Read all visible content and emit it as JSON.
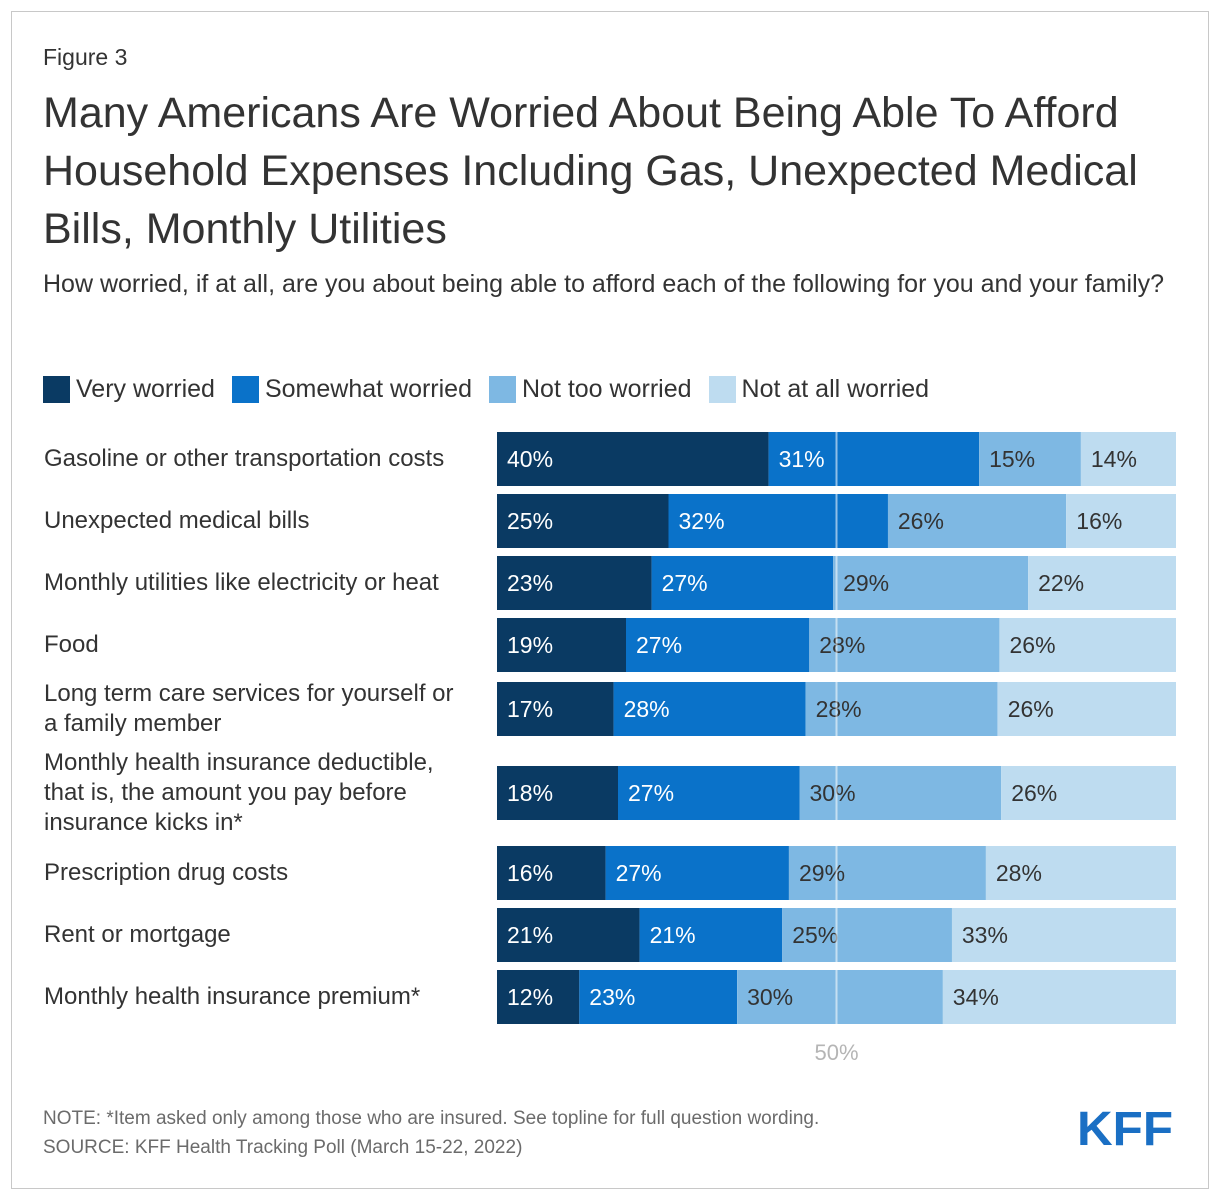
{
  "figure_label": "Figure 3",
  "title": "Many Americans Are Worried About Being Able To Afford Household Expenses Including Gas, Unexpected Medical Bills, Monthly Utilities",
  "subtitle": "How worried, if at all, are you about being able to afford each of the following for you and your family?",
  "legend": [
    {
      "label": "Very worried",
      "color": "#0a3a63"
    },
    {
      "label": "Somewhat worried",
      "color": "#0a72c9"
    },
    {
      "label": "Not too worried",
      "color": "#7eb8e3"
    },
    {
      "label": "Not at all worried",
      "color": "#bedcf0"
    }
  ],
  "note": "NOTE: *Item asked only among those who are insured. See topline for full question wording.",
  "source": "SOURCE: KFF Health Tracking Poll (March 15-22, 2022)",
  "logo_text": "KFF",
  "colors": {
    "very_worried": "#0a3a63",
    "somewhat_worried": "#0a72c9",
    "not_too_worried": "#7eb8e3",
    "not_at_all_worried": "#bedcf0",
    "logo": "#1a6fc4"
  },
  "chart_data": {
    "type": "bar",
    "orientation": "horizontal",
    "stacked": true,
    "unit": "%",
    "categories": [
      "Gasoline or other transportation costs",
      "Unexpected medical bills",
      "Monthly utilities like electricity or heat",
      "Food",
      "Long term care services for yourself or a family member",
      "Monthly health insurance deductible, that is, the amount you pay before insurance kicks in*",
      "Prescription drug costs",
      "Rent or mortgage",
      "Monthly health insurance premium*"
    ],
    "series": [
      {
        "name": "Very worried",
        "values": [
          40,
          25,
          23,
          19,
          17,
          18,
          16,
          21,
          12
        ]
      },
      {
        "name": "Somewhat worried",
        "values": [
          31,
          32,
          27,
          27,
          28,
          27,
          27,
          21,
          23
        ]
      },
      {
        "name": "Not too worried",
        "values": [
          15,
          26,
          29,
          28,
          28,
          30,
          29,
          25,
          30
        ]
      },
      {
        "name": "Not at all worried",
        "values": [
          14,
          16,
          22,
          26,
          26,
          26,
          28,
          33,
          34
        ]
      }
    ],
    "reference_line": {
      "value": 50,
      "label": "50%"
    },
    "legend_position": "top-left"
  }
}
